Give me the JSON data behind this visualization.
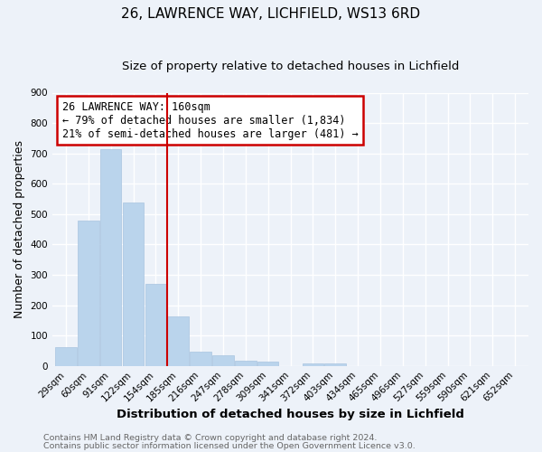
{
  "title": "26, LAWRENCE WAY, LICHFIELD, WS13 6RD",
  "subtitle": "Size of property relative to detached houses in Lichfield",
  "xlabel": "Distribution of detached houses by size in Lichfield",
  "ylabel": "Number of detached properties",
  "bar_labels": [
    "29sqm",
    "60sqm",
    "91sqm",
    "122sqm",
    "154sqm",
    "185sqm",
    "216sqm",
    "247sqm",
    "278sqm",
    "309sqm",
    "341sqm",
    "372sqm",
    "403sqm",
    "434sqm",
    "465sqm",
    "496sqm",
    "527sqm",
    "559sqm",
    "590sqm",
    "621sqm",
    "652sqm"
  ],
  "bar_values": [
    62,
    478,
    713,
    537,
    271,
    163,
    46,
    34,
    18,
    14,
    0,
    9,
    9,
    0,
    0,
    0,
    0,
    0,
    0,
    0,
    0
  ],
  "bar_color": "#bad4ec",
  "bar_edge_color": "#a8c4e0",
  "background_color": "#edf2f9",
  "grid_color": "#ffffff",
  "vline_x": 4.5,
  "vline_color": "#cc0000",
  "annotation_text": "26 LAWRENCE WAY: 160sqm\n← 79% of detached houses are smaller (1,834)\n21% of semi-detached houses are larger (481) →",
  "annotation_box_color": "#ffffff",
  "annotation_box_edge_color": "#cc0000",
  "ylim": [
    0,
    900
  ],
  "yticks": [
    0,
    100,
    200,
    300,
    400,
    500,
    600,
    700,
    800,
    900
  ],
  "footer1": "Contains HM Land Registry data © Crown copyright and database right 2024.",
  "footer2": "Contains public sector information licensed under the Open Government Licence v3.0.",
  "title_fontsize": 11,
  "subtitle_fontsize": 9.5,
  "tick_fontsize": 7.5,
  "ylabel_fontsize": 9,
  "xlabel_fontsize": 9.5,
  "footer_fontsize": 6.8
}
